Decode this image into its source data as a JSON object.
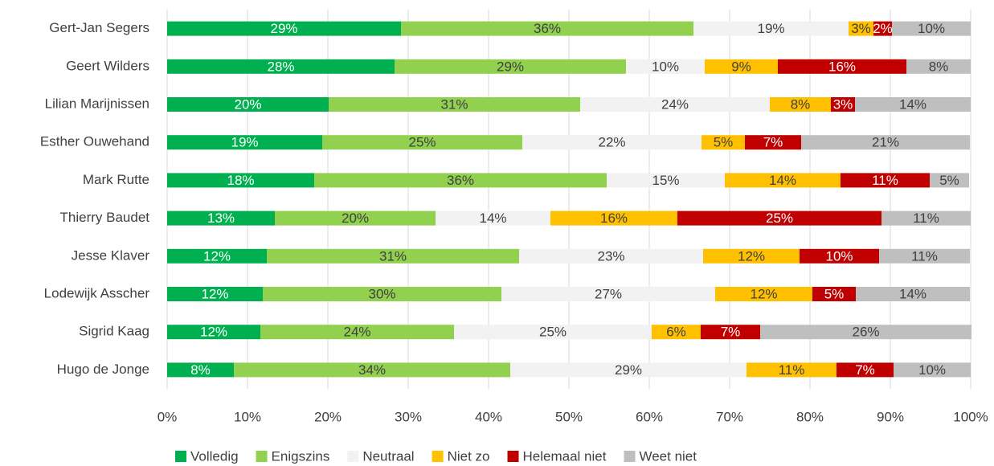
{
  "chart_data": {
    "type": "stacked-barh",
    "categories": [
      "Gert-Jan Segers",
      "Geert Wilders",
      "Lilian Marijnissen",
      "Esther Ouwehand",
      "Mark Rutte",
      "Thierry Baudet",
      "Jesse Klaver",
      "Lodewijk Asscher",
      "Sigrid Kaag",
      "Hugo de Jonge"
    ],
    "series": [
      {
        "name": "Volledig",
        "color": "#00b050",
        "values": [
          29.1,
          28.3,
          20.1,
          19.3,
          18.3,
          13.4,
          12.4,
          11.9,
          11.6,
          8.3
        ],
        "value_labels": [
          "29%",
          "28%",
          "20%",
          "19%",
          "18%",
          "13%",
          "12%",
          "12%",
          "12%",
          "8%"
        ]
      },
      {
        "name": "Enigszins",
        "color": "#92d050",
        "values": [
          36.4,
          28.8,
          31.3,
          24.9,
          36.4,
          20.0,
          31.4,
          29.7,
          24.1,
          34.4
        ],
        "value_labels": [
          "36%",
          "29%",
          "31%",
          "25%",
          "36%",
          "20%",
          "31%",
          "30%",
          "24%",
          "34%"
        ]
      },
      {
        "name": "Neutraal",
        "color": "#f2f2f2",
        "values": [
          19.3,
          9.8,
          23.6,
          22.3,
          14.7,
          14.3,
          22.9,
          26.6,
          24.6,
          29.4
        ],
        "value_labels": [
          "19%",
          "10%",
          "24%",
          "22%",
          "15%",
          "14%",
          "23%",
          "27%",
          "25%",
          "29%"
        ]
      },
      {
        "name": "Niet zo",
        "color": "#ffc000",
        "values": [
          3.1,
          9.1,
          7.6,
          5.4,
          14.4,
          15.8,
          12.0,
          12.1,
          6.1,
          11.2
        ],
        "value_labels": [
          "3%",
          "9%",
          "8%",
          "5%",
          "14%",
          "16%",
          "12%",
          "12%",
          "6%",
          "11%"
        ]
      },
      {
        "name": "Helemaal niet",
        "color": "#c00000",
        "values": [
          2.3,
          16.0,
          3.0,
          7.0,
          11.1,
          25.4,
          9.9,
          5.4,
          7.4,
          7.1
        ],
        "value_labels": [
          "2%",
          "16%",
          "3%",
          "7%",
          "11%",
          "25%",
          "10%",
          "5%",
          "7%",
          "7%"
        ]
      },
      {
        "name": "Weet niet",
        "color": "#bfbfbf",
        "values": [
          9.8,
          8.0,
          14.4,
          21.0,
          4.9,
          11.1,
          11.3,
          14.2,
          26.3,
          9.6
        ],
        "value_labels": [
          "10%",
          "8%",
          "14%",
          "21%",
          "5%",
          "11%",
          "11%",
          "14%",
          "26%",
          "10%"
        ]
      }
    ],
    "xlim": [
      0,
      100
    ],
    "xticks": [
      {
        "value": 0,
        "label": "0%"
      },
      {
        "value": 10,
        "label": "10%"
      },
      {
        "value": 20,
        "label": "20%"
      },
      {
        "value": 30,
        "label": "30%"
      },
      {
        "value": 40,
        "label": "40%"
      },
      {
        "value": 50,
        "label": "50%"
      },
      {
        "value": 60,
        "label": "60%"
      },
      {
        "value": 70,
        "label": "70%"
      },
      {
        "value": 80,
        "label": "80%"
      },
      {
        "value": 90,
        "label": "90%"
      },
      {
        "value": 100,
        "label": "100%"
      }
    ],
    "grid": true,
    "legend": "bottom"
  }
}
